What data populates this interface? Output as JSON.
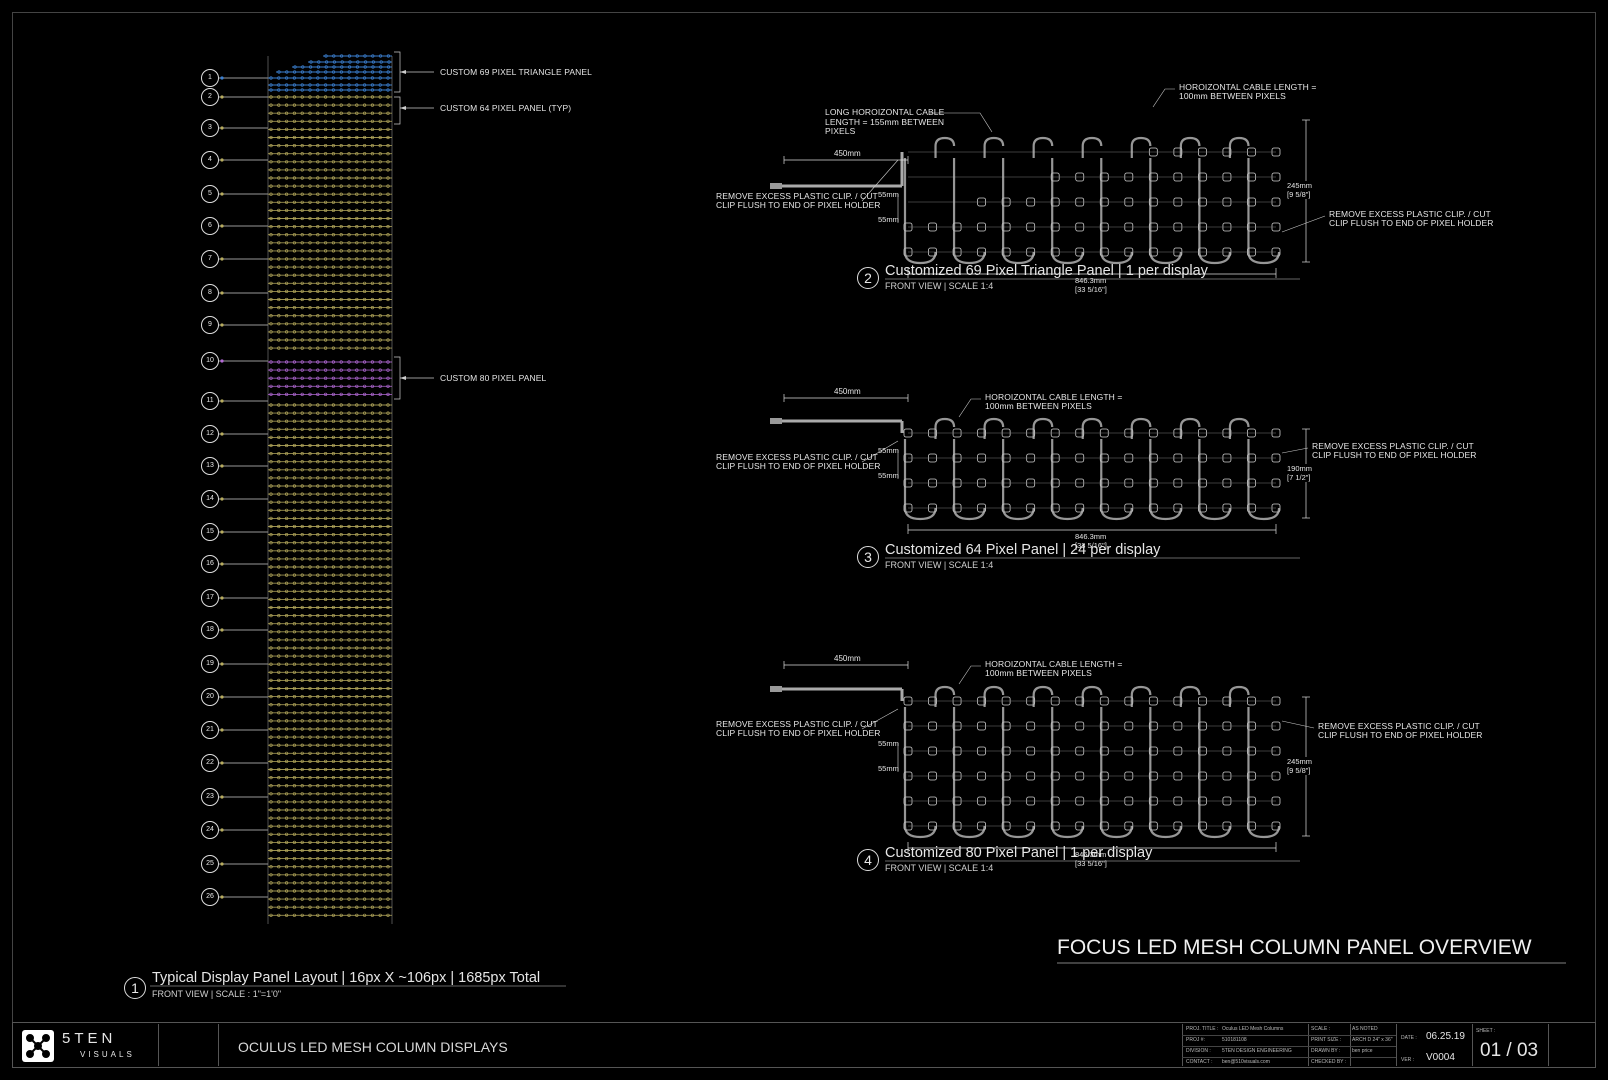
{
  "drawing_title": "FOCUS LED MESH COLUMN PANEL OVERVIEW",
  "layout": {
    "row_labels": [
      "1",
      "2",
      "3",
      "4",
      "5",
      "6",
      "7",
      "8",
      "9",
      "10",
      "11",
      "12",
      "13",
      "14",
      "15",
      "16",
      "17",
      "18",
      "19",
      "20",
      "21",
      "22",
      "23",
      "24",
      "25",
      "26"
    ],
    "callouts": [
      "CUSTOM 69 PIXEL TRIANGLE PANEL",
      "CUSTOM 64 PIXEL PANEL (TYP)",
      "CUSTOM 80 PIXEL PANEL"
    ],
    "colors": {
      "triangle": "#3b7fd0",
      "standard": "#b9ad5e",
      "custom80": "#b46ad8"
    },
    "view": {
      "number": "1",
      "title": "Typical Display Panel Layout | 16px X ~106px | 1685px Total",
      "subtitle": "FRONT VIEW | SCALE : 1\"=1'0\""
    }
  },
  "views": [
    {
      "number": "2",
      "title": "Customized 69 Pixel Triangle Panel | 1 per display",
      "subtitle": "FRONT VIEW | SCALE 1:4",
      "lead": "450mm",
      "cable_note_top": "HOROIZONTAL CABLE LENGTH =\n100mm BETWEEN PIXELS",
      "cable_note_long": "LONG HOROIZONTAL CABLE\nLENGTH = 155mm BETWEEN\nPIXELS",
      "left_note": "REMOVE EXCESS PLASTIC CLIP. / CUT\nCLIP FLUSH TO END OF PIXEL HOLDER",
      "right_note": "REMOVE EXCESS PLASTIC CLIP. / CUT\nCLIP FLUSH TO END OF PIXEL HOLDER",
      "dim_a": "55mm",
      "dim_b": "55mm",
      "width": "846.3mm",
      "width_in": "[33 5/16\"]",
      "height": "245mm",
      "height_in": "[9 5/8\"]"
    },
    {
      "number": "3",
      "title": "Customized 64 Pixel Panel | 24 per display",
      "subtitle": "FRONT VIEW | SCALE 1:4",
      "lead": "450mm",
      "cable_note_top": "HOROIZONTAL CABLE LENGTH =\n100mm BETWEEN PIXELS",
      "left_note": "REMOVE EXCESS PLASTIC CLIP. / CUT\nCLIP FLUSH TO END OF PIXEL HOLDER",
      "right_note": "REMOVE EXCESS PLASTIC CLIP. / CUT\nCLIP FLUSH TO END OF PIXEL HOLDER",
      "dim_a": "55mm",
      "dim_b": "55mm",
      "width": "846.3mm",
      "width_in": "[33 5/16\"]",
      "height": "190mm",
      "height_in": "[7 1/2\"]"
    },
    {
      "number": "4",
      "title": "Customized 80 Pixel Panel | 1 per display",
      "subtitle": "FRONT VIEW | SCALE 1:4",
      "lead": "450mm",
      "cable_note_top": "HOROIZONTAL CABLE LENGTH =\n100mm BETWEEN PIXELS",
      "left_note": "REMOVE EXCESS PLASTIC CLIP. / CUT\nCLIP FLUSH TO END OF PIXEL HOLDER",
      "right_note": "REMOVE EXCESS PLASTIC CLIP. / CUT\nCLIP FLUSH TO END OF PIXEL HOLDER",
      "dim_a": "55mm",
      "dim_b": "55mm",
      "width": "846.3mm",
      "width_in": "[33 5/16\"]",
      "height": "245mm",
      "height_in": "[9 5/8\"]"
    }
  ],
  "title_block": {
    "logo_name": "5TEN",
    "logo_sub": "VISUALS",
    "project_name": "OCULUS LED MESH COLUMN DISPLAYS",
    "fields": [
      {
        "label": "PROJ. TITLE :",
        "value": "Oculus LED Mesh Columns"
      },
      {
        "label": "PROJ #:",
        "value": "510181108"
      },
      {
        "label": "DIVISION :",
        "value": "5TEN DESIGN ENGINEERING"
      },
      {
        "label": "CONTACT :",
        "value": "ben@510visuals.com"
      }
    ],
    "fields2": [
      {
        "label": "SCALE :",
        "value": "AS NOTED"
      },
      {
        "label": "PRINT SIZE :",
        "value": "ARCH D 24\" x 36\""
      },
      {
        "label": "DRAWN BY :",
        "value": "ben price"
      },
      {
        "label": "CHECKED BY :",
        "value": ""
      }
    ],
    "date_label": "DATE :",
    "date": "06.25.19",
    "ver_label": "VER :",
    "ver": "V0004",
    "sheet_label": "SHEET :",
    "sheet": "01 / 03"
  }
}
